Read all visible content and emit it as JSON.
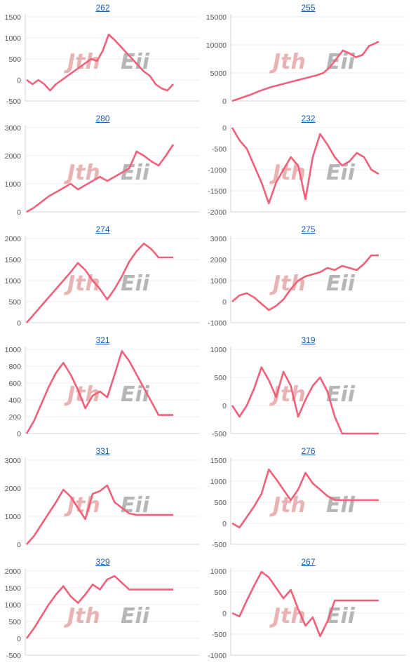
{
  "watermark": {
    "left": "Jth",
    "right": "Eii",
    "left_color": "#e6a6a6",
    "right_color": "#aaaaaa"
  },
  "colors": {
    "line": "#f0607a",
    "axis": "#d6d6d6",
    "grid": "#eeeeee"
  },
  "chart_data": [
    {
      "type": "line",
      "title": "262",
      "ylim": [
        -500,
        1500
      ],
      "yticks": [
        1500,
        1000,
        500,
        0,
        -500
      ],
      "x": [
        0,
        5,
        10,
        15,
        20,
        25,
        30,
        35,
        40,
        45,
        50,
        55,
        60,
        65,
        70,
        75,
        80,
        85,
        90,
        95,
        100,
        105,
        110,
        115,
        120,
        125
      ],
      "values": [
        0,
        -100,
        0,
        -100,
        -250,
        -100,
        0,
        100,
        200,
        300,
        400,
        500,
        450,
        700,
        1080,
        950,
        800,
        650,
        500,
        350,
        200,
        100,
        -100,
        -200,
        -250,
        -100
      ]
    },
    {
      "type": "line",
      "title": "255",
      "ylim": [
        0,
        15000
      ],
      "yticks": [
        15000,
        10000,
        5000,
        0
      ],
      "x": [
        0,
        10,
        20,
        30,
        40,
        50,
        60,
        70,
        80,
        90,
        100,
        110,
        120,
        130,
        140,
        150,
        160,
        170,
        180,
        190,
        200,
        210,
        220,
        225
      ],
      "values": [
        0,
        400,
        800,
        1200,
        1700,
        2100,
        2500,
        2800,
        3100,
        3400,
        3700,
        4000,
        4300,
        4600,
        5000,
        6000,
        7500,
        9000,
        8500,
        7800,
        8200,
        9800,
        10300,
        10600
      ]
    },
    {
      "type": "line",
      "title": "280",
      "ylim": [
        0,
        3000
      ],
      "yticks": [
        3000,
        2000,
        1000,
        0
      ],
      "x": [
        0,
        5,
        10,
        15,
        20,
        25,
        30,
        35,
        40,
        45,
        50,
        55,
        60,
        65,
        70,
        75,
        80,
        85,
        90,
        95,
        100
      ],
      "values": [
        0,
        150,
        350,
        550,
        700,
        850,
        1000,
        800,
        950,
        1100,
        1250,
        1100,
        1250,
        1400,
        1550,
        2150,
        2000,
        1800,
        1650,
        2000,
        2400
      ]
    },
    {
      "type": "line",
      "title": "232",
      "ylim": [
        -2000,
        0
      ],
      "yticks": [
        0,
        -500,
        -1000,
        -1500,
        -2000
      ],
      "x": [
        0,
        5,
        10,
        15,
        20,
        25,
        30,
        35,
        40,
        45,
        50,
        55,
        60,
        65,
        70,
        75,
        80,
        85,
        90,
        95,
        100
      ],
      "values": [
        0,
        -300,
        -500,
        -900,
        -1300,
        -1800,
        -1300,
        -1000,
        -700,
        -900,
        -1700,
        -700,
        -150,
        -400,
        -700,
        -900,
        -800,
        -600,
        -700,
        -1000,
        -1100
      ]
    },
    {
      "type": "line",
      "title": "274",
      "ylim": [
        0,
        2000
      ],
      "yticks": [
        2000,
        1500,
        1000,
        500,
        0
      ],
      "x": [
        0,
        5,
        10,
        15,
        20,
        25,
        30,
        35,
        40,
        45,
        50,
        55,
        60,
        65,
        70,
        75,
        80,
        85,
        90,
        95,
        100
      ],
      "values": [
        0,
        200,
        400,
        600,
        800,
        1000,
        1200,
        1420,
        1250,
        1000,
        800,
        550,
        800,
        1100,
        1450,
        1700,
        1880,
        1750,
        1550,
        1550,
        1550
      ]
    },
    {
      "type": "line",
      "title": "275",
      "ylim": [
        -1000,
        3000
      ],
      "yticks": [
        3000,
        2000,
        1000,
        0,
        -1000
      ],
      "x": [
        0,
        5,
        10,
        15,
        20,
        25,
        30,
        35,
        40,
        45,
        50,
        55,
        60,
        65,
        70,
        75,
        80,
        85,
        90,
        95,
        100
      ],
      "values": [
        0,
        300,
        400,
        200,
        -100,
        -400,
        -200,
        100,
        600,
        1000,
        1200,
        1300,
        1400,
        1600,
        1500,
        1700,
        1600,
        1500,
        1800,
        2200,
        2200
      ]
    },
    {
      "type": "line",
      "title": "321",
      "ylim": [
        0,
        1000
      ],
      "yticks": [
        1000,
        800,
        600,
        400,
        200,
        0
      ],
      "x": [
        0,
        5,
        10,
        15,
        20,
        25,
        30,
        35,
        40,
        45,
        50,
        55,
        60,
        65,
        70,
        75,
        80,
        85,
        90,
        95,
        100
      ],
      "values": [
        0,
        150,
        350,
        550,
        720,
        840,
        700,
        520,
        300,
        450,
        500,
        430,
        700,
        980,
        860,
        700,
        540,
        380,
        220,
        220,
        220
      ]
    },
    {
      "type": "line",
      "title": "319",
      "ylim": [
        -500,
        1000
      ],
      "yticks": [
        1000,
        500,
        0,
        -500
      ],
      "x": [
        0,
        5,
        10,
        15,
        20,
        25,
        30,
        35,
        40,
        45,
        50,
        55,
        60,
        65,
        70,
        75,
        80,
        85,
        90,
        95,
        100
      ],
      "values": [
        0,
        -200,
        0,
        300,
        680,
        450,
        150,
        600,
        350,
        -200,
        100,
        350,
        500,
        250,
        -200,
        -500,
        -500,
        -500,
        -500,
        -500,
        -500
      ]
    },
    {
      "type": "line",
      "title": "331",
      "ylim": [
        0,
        3000
      ],
      "yticks": [
        3000,
        2000,
        1000,
        0
      ],
      "x": [
        0,
        5,
        10,
        15,
        20,
        25,
        30,
        35,
        40,
        45,
        50,
        55,
        60,
        65,
        70,
        75,
        80,
        85,
        90,
        95,
        100
      ],
      "values": [
        0,
        300,
        700,
        1100,
        1500,
        1950,
        1700,
        1300,
        900,
        1800,
        1900,
        2100,
        1500,
        1300,
        1100,
        1050,
        1050,
        1050,
        1050,
        1050,
        1050
      ]
    },
    {
      "type": "line",
      "title": "276",
      "ylim": [
        -500,
        1500
      ],
      "yticks": [
        1500,
        1000,
        500,
        0,
        -500
      ],
      "x": [
        0,
        5,
        10,
        15,
        20,
        25,
        30,
        35,
        40,
        45,
        50,
        55,
        60,
        65,
        70,
        75,
        80,
        85,
        90,
        95,
        100
      ],
      "values": [
        0,
        -100,
        150,
        400,
        700,
        1280,
        1050,
        800,
        550,
        800,
        1200,
        950,
        800,
        650,
        550,
        550,
        550,
        550,
        550,
        550,
        550
      ]
    },
    {
      "type": "line",
      "title": "329",
      "ylim": [
        -500,
        2000
      ],
      "yticks": [
        2000,
        1500,
        1000,
        500,
        0,
        -500
      ],
      "x": [
        0,
        5,
        10,
        15,
        20,
        25,
        30,
        35,
        40,
        45,
        50,
        55,
        60,
        65,
        70,
        75,
        80,
        85,
        90,
        95,
        100
      ],
      "values": [
        0,
        300,
        650,
        1000,
        1300,
        1550,
        1250,
        1050,
        1300,
        1600,
        1450,
        1750,
        1850,
        1650,
        1450,
        1450,
        1450,
        1450,
        1450,
        1450,
        1450
      ]
    },
    {
      "type": "line",
      "title": "267",
      "ylim": [
        -1000,
        1000
      ],
      "yticks": [
        1000,
        500,
        0,
        -500,
        -1000
      ],
      "x": [
        0,
        5,
        10,
        15,
        20,
        25,
        30,
        35,
        40,
        45,
        50,
        55,
        60,
        65,
        70,
        75,
        80,
        85,
        90,
        95,
        100
      ],
      "values": [
        0,
        -80,
        300,
        650,
        980,
        850,
        600,
        350,
        550,
        100,
        -300,
        -100,
        -550,
        -200,
        300,
        300,
        300,
        300,
        300,
        300,
        300
      ]
    }
  ]
}
